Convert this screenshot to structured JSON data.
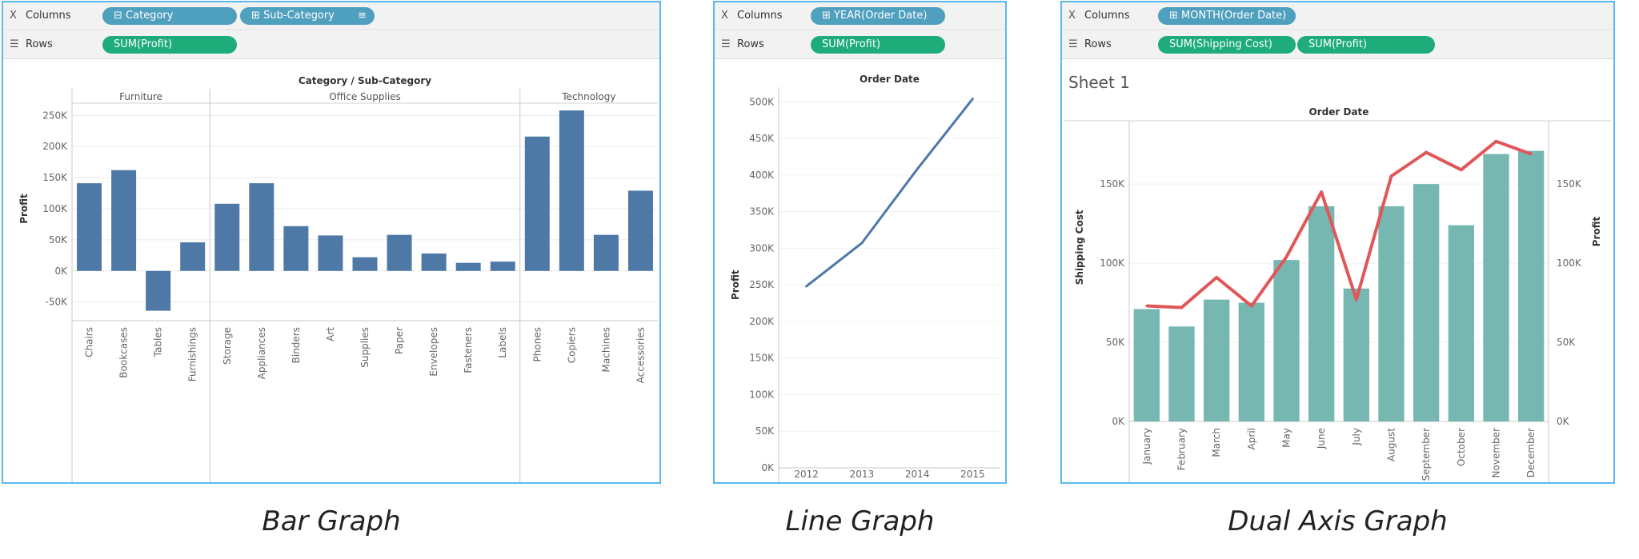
{
  "captions": [
    "Bar Graph",
    "Line Graph",
    "Dual Axis Graph"
  ],
  "panels": [
    {
      "columns_label": "Columns",
      "rows_label": "Rows",
      "column_pills": [
        "Category",
        "Sub-Category"
      ],
      "row_pills": [
        "SUM(Profit)"
      ]
    },
    {
      "columns_label": "Columns",
      "rows_label": "Rows",
      "column_pills": [
        "YEAR(Order Date)"
      ],
      "row_pills": [
        "SUM(Profit)"
      ]
    },
    {
      "columns_label": "Columns",
      "rows_label": "Rows",
      "column_pills": [
        "MONTH(Order Date)"
      ],
      "row_pills": [
        "SUM(Shipping Cost)",
        "SUM(Profit)"
      ],
      "sheet_title": "Sheet 1"
    }
  ],
  "colors": {
    "bar": "#4e79a7",
    "line": "#4e79a7",
    "teal_bar": "#76b7b2",
    "red_line": "#e15759",
    "pill_dim": "#4f9fbe",
    "pill_measure": "#1dac7a",
    "border": "#5bb8ee"
  },
  "chart_data": [
    {
      "type": "bar",
      "title": "Category / Sub-Category",
      "ylabel": "Profit",
      "ylim": [
        -80000,
        280000
      ],
      "yticks": [
        -50000,
        0,
        50000,
        100000,
        150000,
        200000,
        250000
      ],
      "ytick_labels": [
        "-50K",
        "0K",
        "50K",
        "100K",
        "150K",
        "200K",
        "250K"
      ],
      "groups": [
        {
          "name": "Furniture",
          "categories": [
            "Chairs",
            "Bookcases",
            "Tables",
            "Furnishings"
          ],
          "values": [
            141000,
            162000,
            -64000,
            46000
          ]
        },
        {
          "name": "Office Supplies",
          "categories": [
            "Storage",
            "Appliances",
            "Binders",
            "Art",
            "Supplies",
            "Paper",
            "Envelopes",
            "Fasteners",
            "Labels"
          ],
          "values": [
            108000,
            141000,
            72000,
            57000,
            22000,
            58000,
            28000,
            13000,
            15000
          ]
        },
        {
          "name": "Technology",
          "categories": [
            "Phones",
            "Copiers",
            "Machines",
            "Accessories"
          ],
          "values": [
            216000,
            258000,
            58000,
            129000
          ]
        }
      ]
    },
    {
      "type": "line",
      "title": "Order Date",
      "ylabel": "Profit",
      "categories": [
        "2012",
        "2013",
        "2014",
        "2015"
      ],
      "values": [
        248000,
        307000,
        408000,
        504000
      ],
      "ylim": [
        0,
        520000
      ],
      "yticks": [
        0,
        50000,
        100000,
        150000,
        200000,
        250000,
        300000,
        350000,
        400000,
        450000,
        500000
      ],
      "ytick_labels": [
        "0K",
        "50K",
        "100K",
        "150K",
        "200K",
        "250K",
        "300K",
        "350K",
        "400K",
        "450K",
        "500K"
      ]
    },
    {
      "type": "bar",
      "title": "Order Date",
      "categories": [
        "January",
        "February",
        "March",
        "April",
        "May",
        "June",
        "July",
        "August",
        "September",
        "October",
        "November",
        "December"
      ],
      "series": [
        {
          "name": "SUM(Shipping Cost)",
          "mark": "bar",
          "axis": "left",
          "values": [
            71000,
            60000,
            77000,
            75000,
            102000,
            136000,
            84000,
            136000,
            150000,
            124000,
            169000,
            171000
          ]
        },
        {
          "name": "SUM(Profit)",
          "mark": "line",
          "axis": "right",
          "values": [
            73000,
            72000,
            91000,
            73000,
            104000,
            145000,
            77000,
            155000,
            170000,
            159000,
            177000,
            169000
          ]
        }
      ],
      "ylabel_left": "Shipping Cost",
      "ylabel_right": "Profit",
      "ylim": [
        0,
        190000
      ],
      "yticks": [
        0,
        50000,
        100000,
        150000
      ],
      "ytick_labels": [
        "0K",
        "50K",
        "100K",
        "150K"
      ]
    }
  ]
}
